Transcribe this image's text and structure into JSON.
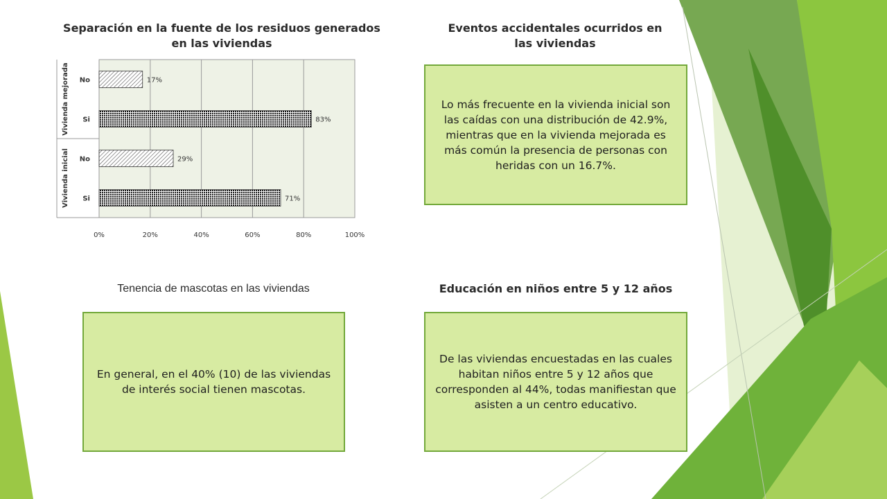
{
  "panels": {
    "top_left_title": "Separación en la fuente de los residuos generados en las viviendas",
    "top_right_title": "Eventos accidentales ocurridos en las viviendas",
    "top_right_text": "Lo más frecuente en la vivienda inicial son las caídas con una distribución de 42.9%, mientras que en la vivienda mejorada es más común la presencia de personas con heridas con un 16.7%.",
    "bottom_left_title": "Tenencia de mascotas en las viviendas",
    "bottom_left_text": "En general, en el 40% (10) de las viviendas de interés social tienen mascotas.",
    "bottom_right_title": "Educación en niños entre 5 y 12 años",
    "bottom_right_text": "De las viviendas encuestadas en las cuales habitan niños entre 5 y 12 años que corresponden al 44%, todas manifiestan que asisten a un centro educativo."
  },
  "colors": {
    "box_fill": "#d7eba2",
    "box_border": "#72a83a",
    "plot_bg": "#eef2e6",
    "green_dark": "#4f8f2a",
    "green_mid": "#8cc63f",
    "green_light": "#c5e29a"
  },
  "chart_data": {
    "type": "bar",
    "orientation": "horizontal",
    "groups": [
      {
        "name": "Vivienda mejorada",
        "bars": [
          {
            "label": "No",
            "value": 17,
            "value_label": "17%",
            "pattern": "light"
          },
          {
            "label": "Si",
            "value": 83,
            "value_label": "83%",
            "pattern": "dark"
          }
        ]
      },
      {
        "name": "Vivienda inicial",
        "bars": [
          {
            "label": "No",
            "value": 29,
            "value_label": "29%",
            "pattern": "light"
          },
          {
            "label": "Si",
            "value": 71,
            "value_label": "71%",
            "pattern": "dark"
          }
        ]
      }
    ],
    "xlim": [
      0,
      100
    ],
    "xticks": [
      "0%",
      "20%",
      "40%",
      "60%",
      "80%",
      "100%"
    ],
    "grid": true
  }
}
